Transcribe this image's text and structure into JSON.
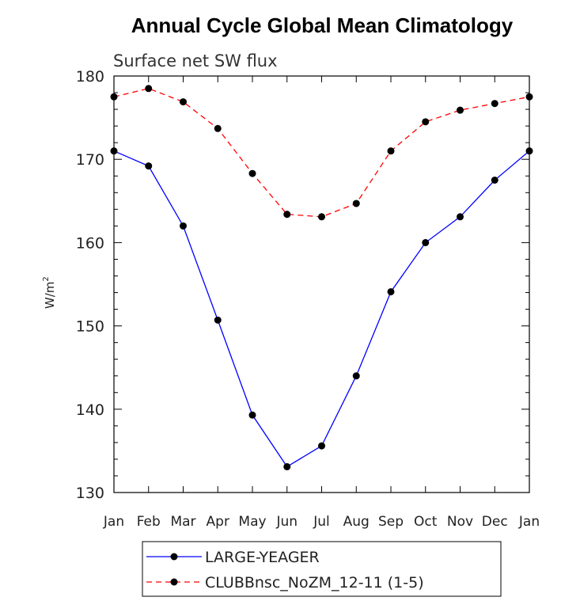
{
  "chart_data": {
    "type": "line",
    "title": "Annual Cycle Global Mean Climatology",
    "subtitle": "Surface net SW flux",
    "ylabel": "W/m",
    "ylabel_sup": "2",
    "xlabel": "",
    "categories": [
      "Jan",
      "Feb",
      "Mar",
      "Apr",
      "May",
      "Jun",
      "Jul",
      "Aug",
      "Sep",
      "Oct",
      "Nov",
      "Dec",
      "Jan"
    ],
    "ylim": [
      130,
      180
    ],
    "yticks": [
      130,
      140,
      150,
      160,
      170,
      180
    ],
    "grid": false,
    "legend_position": "bottom",
    "series": [
      {
        "name": "LARGE-YEAGER",
        "color": "#0000ff",
        "line_style": "solid",
        "values": [
          171.0,
          169.2,
          162.0,
          150.7,
          139.3,
          133.1,
          135.6,
          144.0,
          154.1,
          160.0,
          163.1,
          167.5,
          171.0
        ]
      },
      {
        "name": "CLUBBnsc_NoZM_12-11 (1-5)",
        "color": "#ff0000",
        "line_style": "dashed",
        "values": [
          177.5,
          178.5,
          176.9,
          173.7,
          168.3,
          163.4,
          163.1,
          164.7,
          171.0,
          174.5,
          175.9,
          176.7,
          177.5
        ]
      }
    ]
  }
}
